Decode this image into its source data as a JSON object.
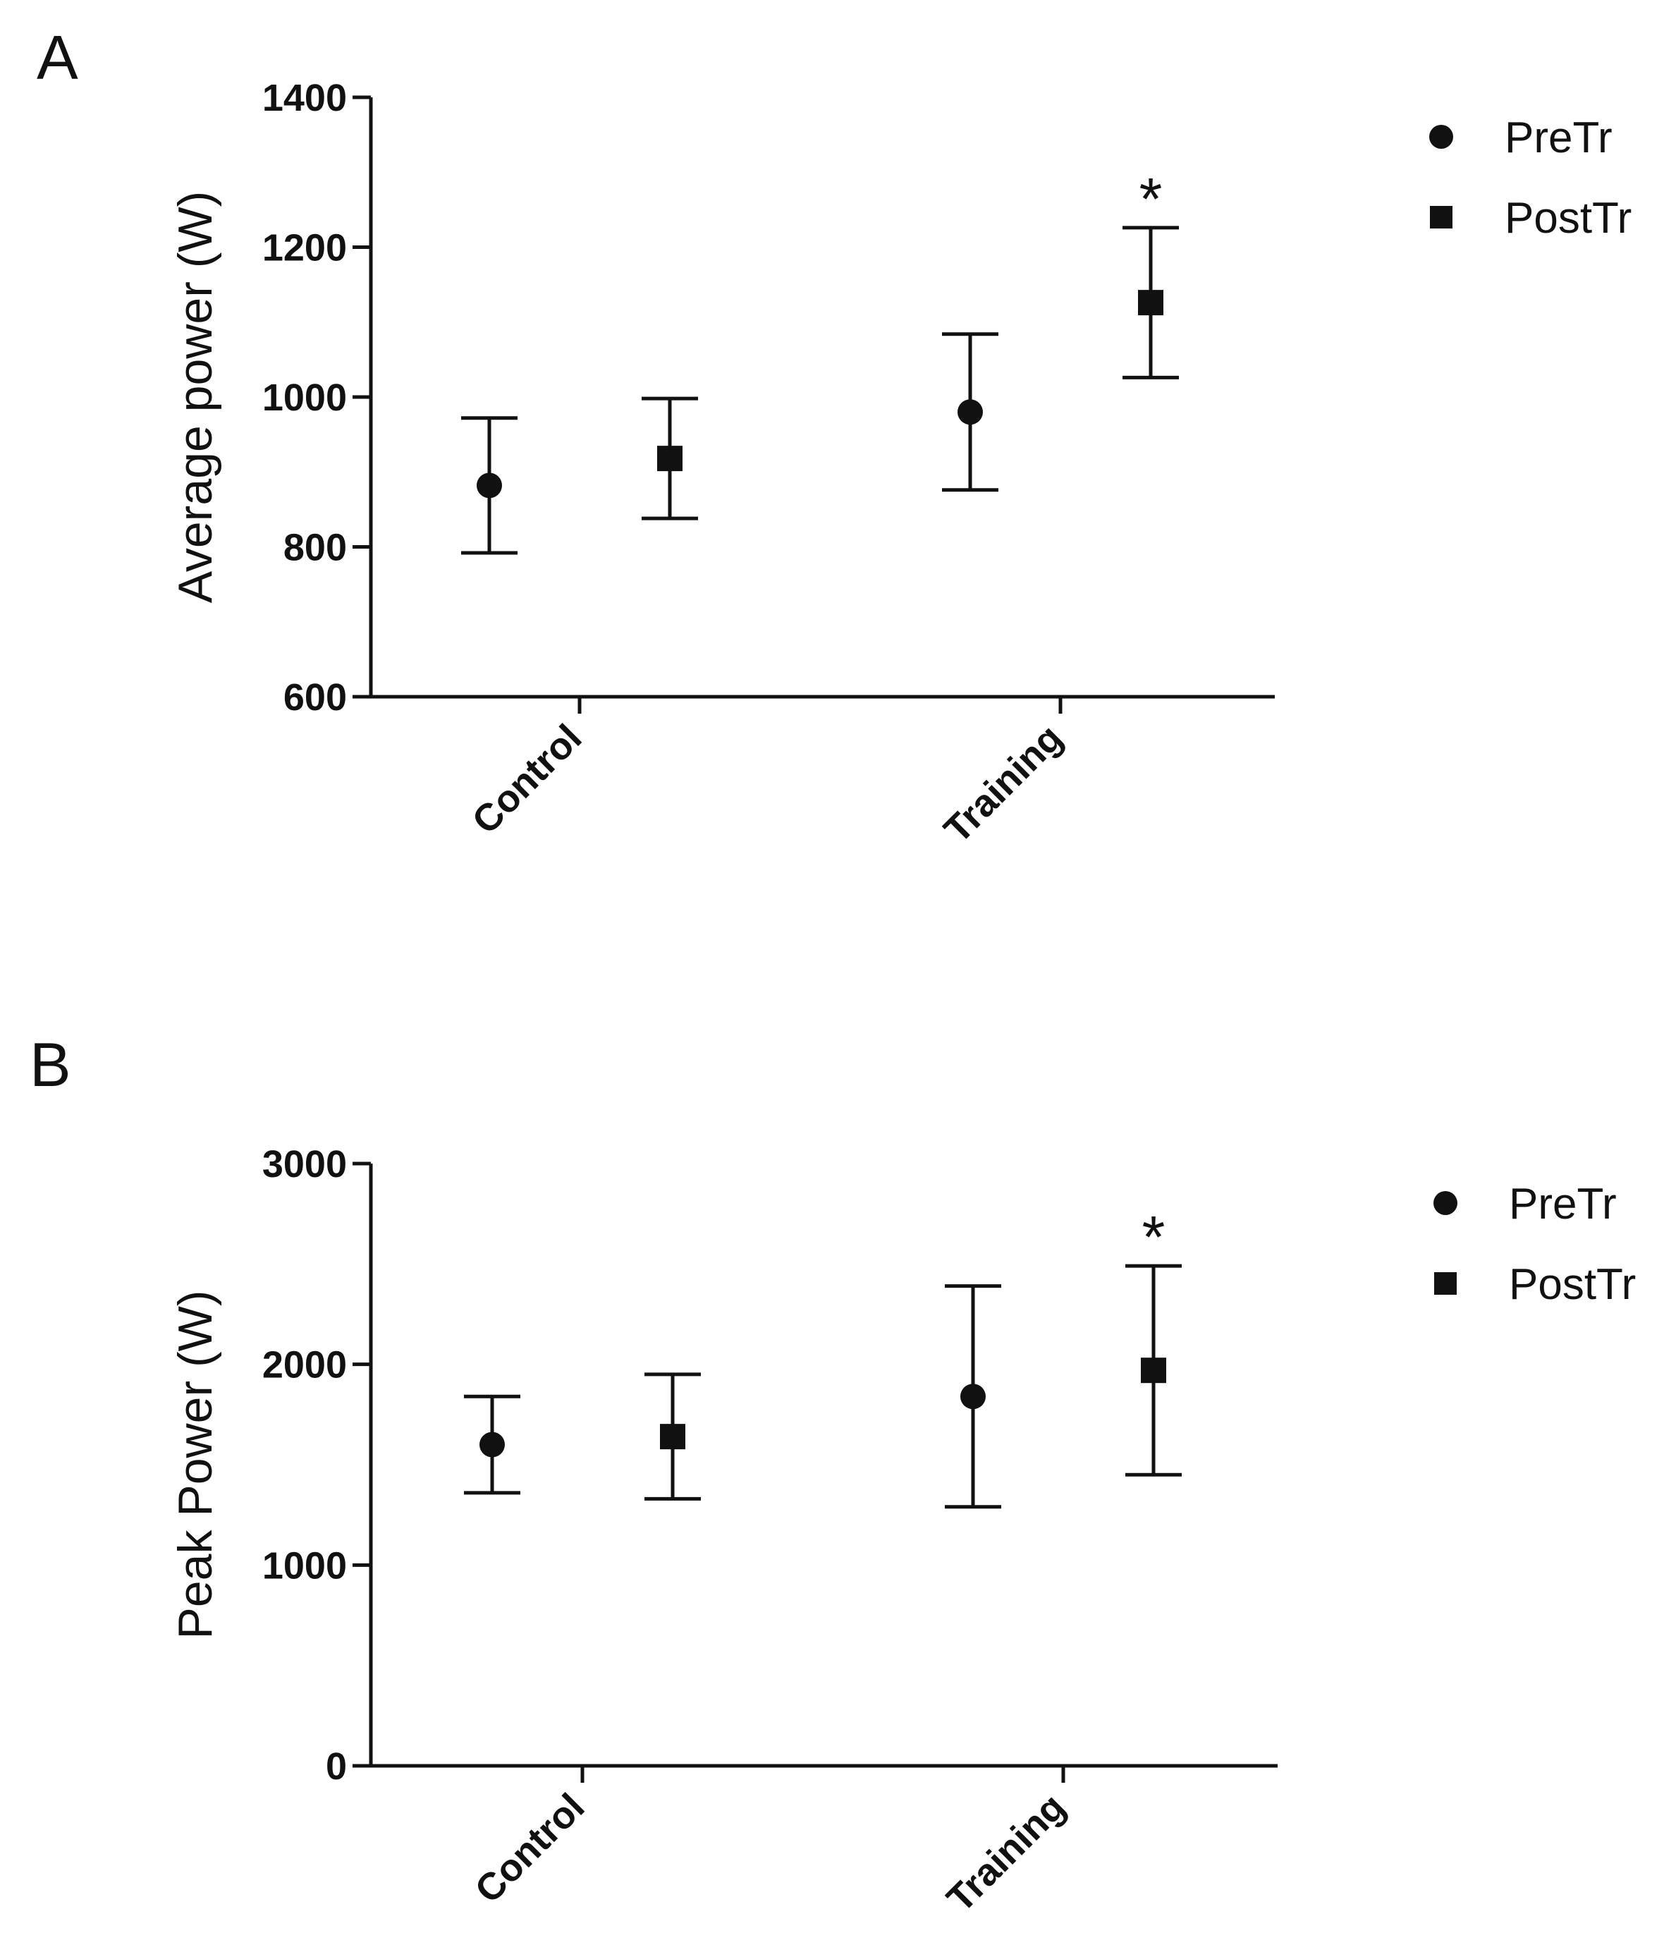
{
  "chart_data": [
    {
      "panel": "A",
      "type": "scatter",
      "title": "",
      "xlabel": "",
      "ylabel": "Average power (W)",
      "categories": [
        "Control",
        "Training"
      ],
      "ylim": [
        600,
        1400
      ],
      "yticks": [
        "600",
        "800",
        "1000",
        "1200",
        "1400"
      ],
      "grid": false,
      "legend": "top-right",
      "series": [
        {
          "name": "PreTr",
          "marker": "circle",
          "values": [
            882,
            980
          ],
          "err_low": [
            792,
            876
          ],
          "err_high": [
            972,
            1084
          ]
        },
        {
          "name": "PostTr",
          "marker": "square",
          "values": [
            918,
            1126
          ],
          "err_low": [
            838,
            1026
          ],
          "err_high": [
            998,
            1226
          ]
        }
      ],
      "annotations": [
        {
          "text": "*",
          "category": "Training",
          "series": "PostTr"
        }
      ]
    },
    {
      "panel": "B",
      "type": "scatter",
      "title": "",
      "xlabel": "",
      "ylabel": "Peak Power (W)",
      "categories": [
        "Control",
        "Training"
      ],
      "ylim": [
        0,
        3000
      ],
      "yticks": [
        "0",
        "1000",
        "2000",
        "3000"
      ],
      "grid": false,
      "legend": "top-right",
      "series": [
        {
          "name": "PreTr",
          "marker": "circle",
          "values": [
            1600,
            1840
          ],
          "err_low": [
            1360,
            1290
          ],
          "err_high": [
            1840,
            2390
          ]
        },
        {
          "name": "PostTr",
          "marker": "square",
          "values": [
            1640,
            1970
          ],
          "err_low": [
            1330,
            1450
          ],
          "err_high": [
            1950,
            2490
          ]
        }
      ],
      "annotations": [
        {
          "text": "*",
          "category": "Training",
          "series": "PostTr"
        }
      ]
    }
  ]
}
